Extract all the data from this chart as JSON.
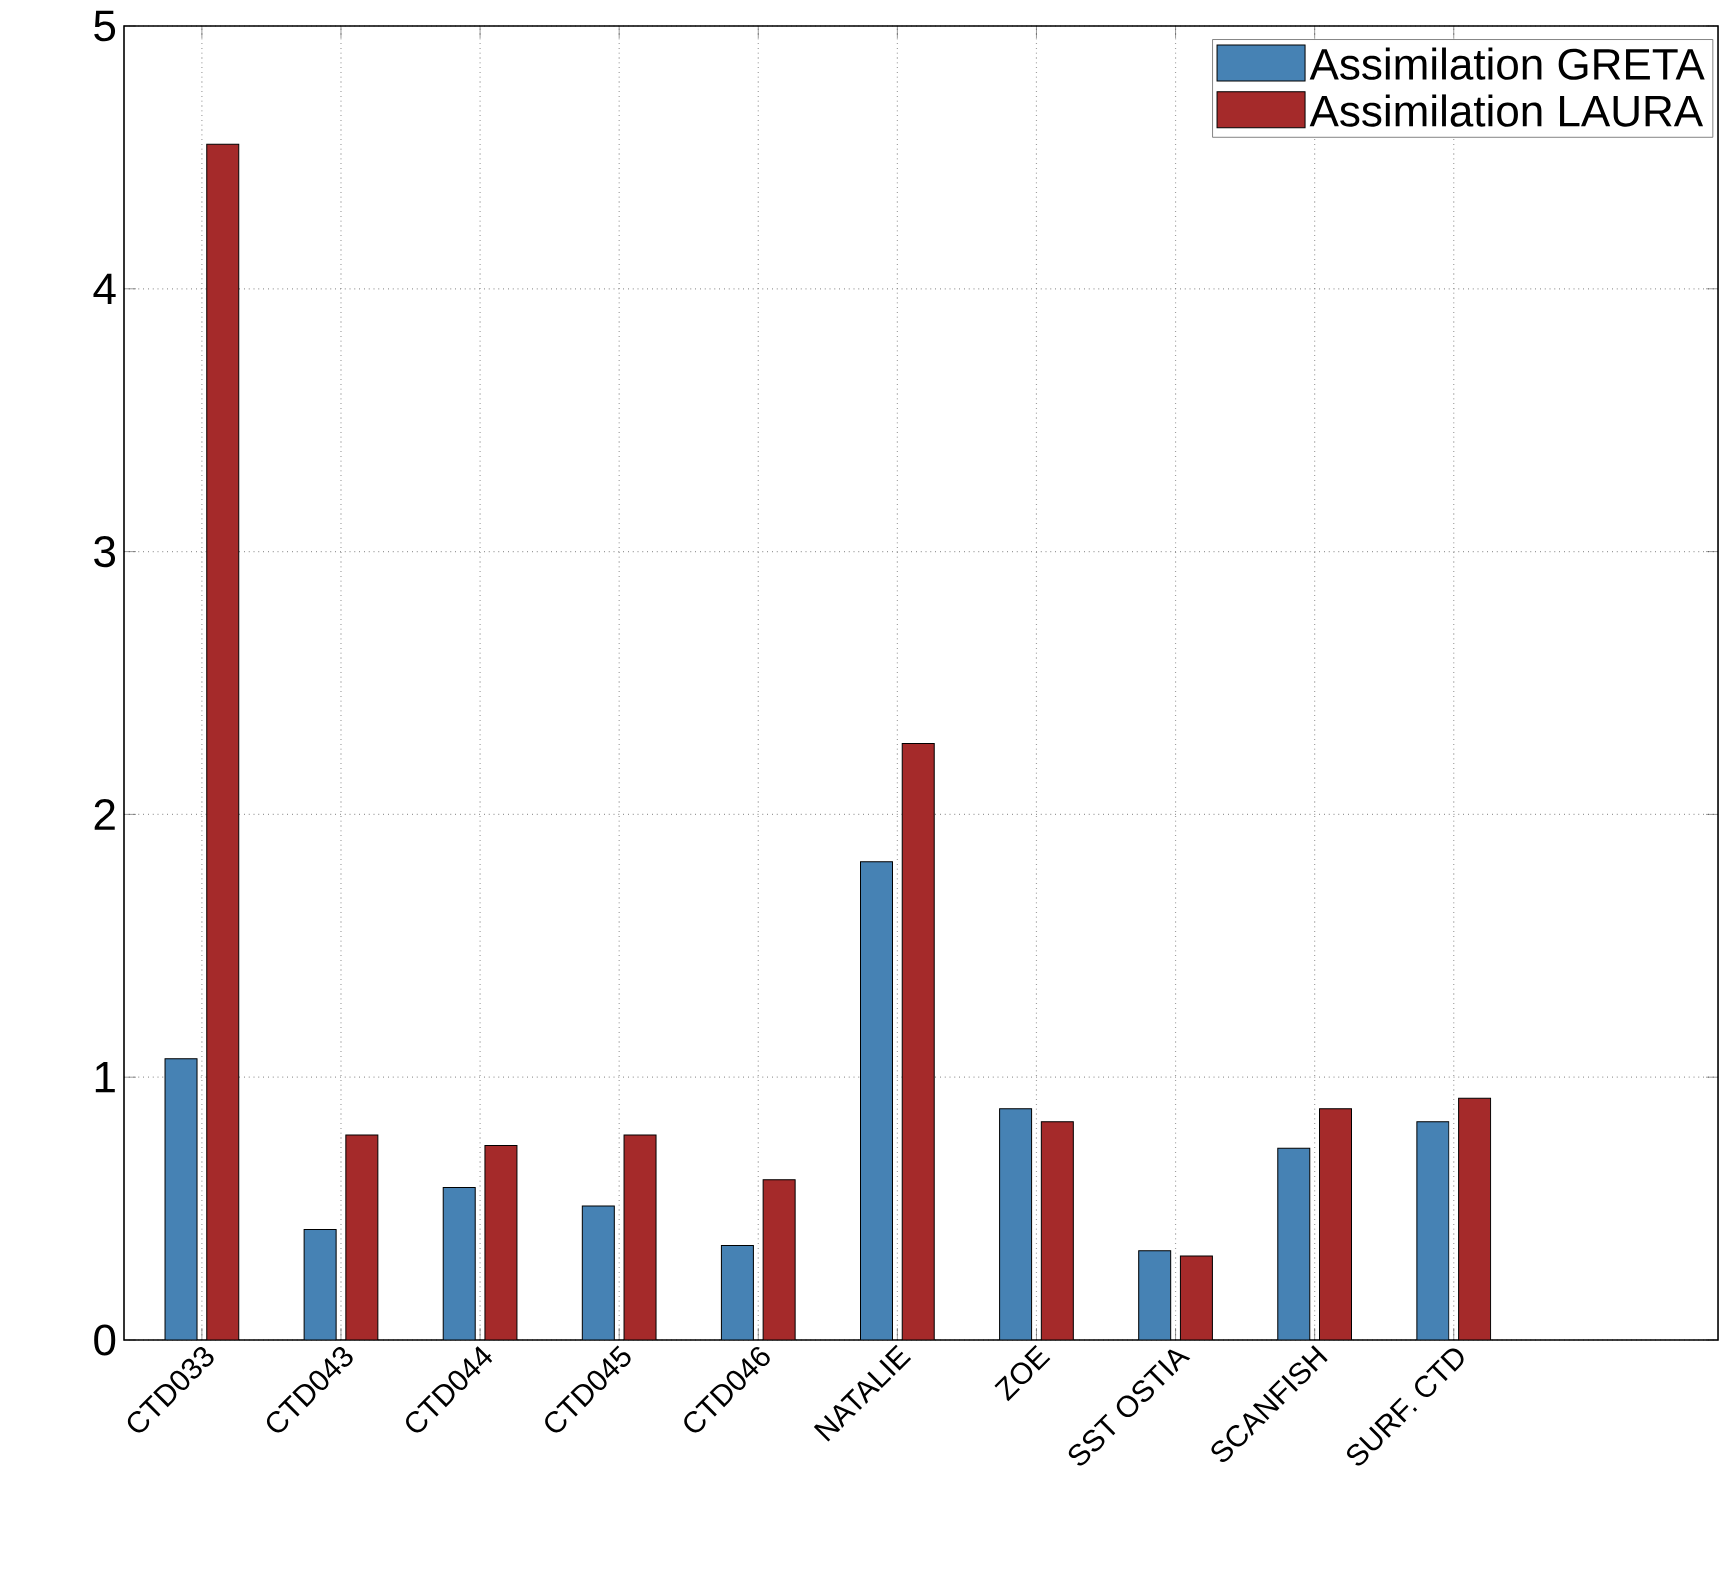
{
  "chart_data": {
    "type": "bar",
    "categories": [
      "CTD033",
      "CTD043",
      "CTD044",
      "CTD045",
      "CTD046",
      "NATALIE",
      "ZOE",
      "SST OSTIA",
      "SCANFISH",
      "SURF. CTD"
    ],
    "series": [
      {
        "name": "Assimilation GRETA",
        "color": "#4682b4",
        "values": [
          1.07,
          0.42,
          0.58,
          0.51,
          0.36,
          1.82,
          0.88,
          0.34,
          0.73,
          0.83
        ]
      },
      {
        "name": "Assimilation LAURA",
        "color": "#a52a2a",
        "values": [
          4.55,
          0.78,
          0.74,
          0.78,
          0.61,
          2.27,
          0.83,
          0.32,
          0.88,
          0.92
        ]
      }
    ],
    "ylim": [
      0,
      5
    ],
    "yticks": [
      0,
      1,
      2,
      3,
      4,
      5
    ],
    "grid": true,
    "legend": "top right"
  }
}
